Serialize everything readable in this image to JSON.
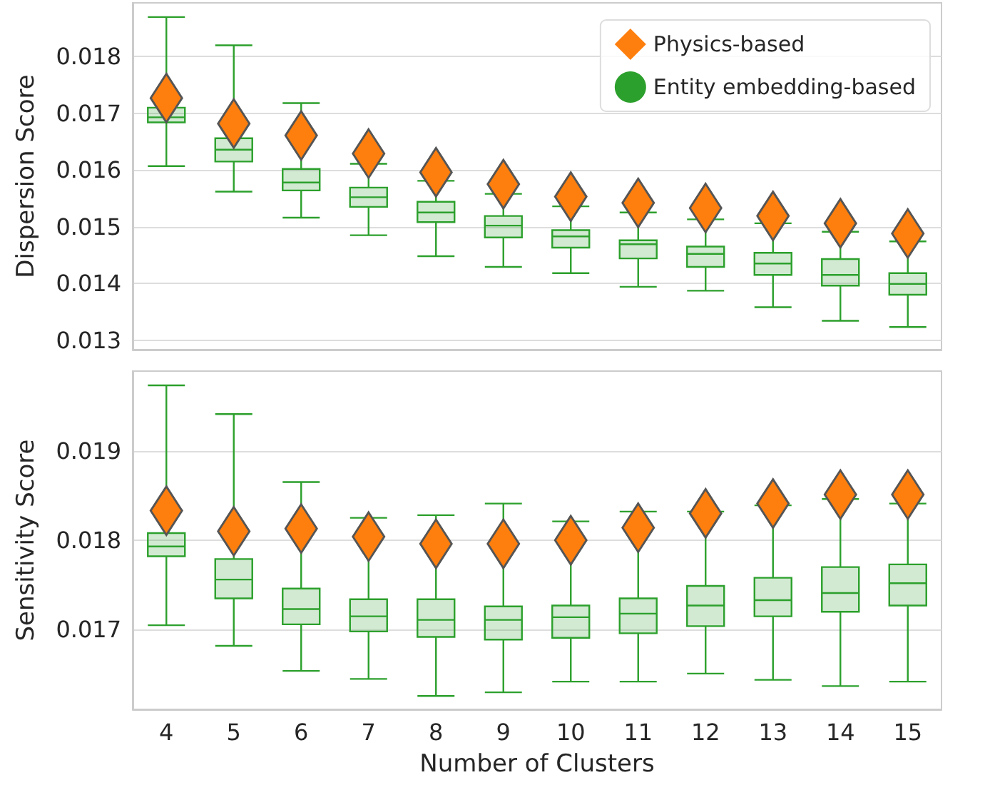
{
  "chart_data": [
    {
      "type": "box",
      "ylabel": "Dispersion Score",
      "categories": [
        "4",
        "5",
        "6",
        "7",
        "8",
        "9",
        "10",
        "11",
        "12",
        "13",
        "14",
        "15"
      ],
      "ylim": [
        0.01283,
        0.01895
      ],
      "yticks": [
        0.013,
        0.014,
        0.015,
        0.016,
        0.017,
        0.018
      ],
      "grid": "y",
      "legend": "top right",
      "tick_labels": "y",
      "series": [
        {
          "name": "Physics-based",
          "type": "scatter",
          "marker": "diamond",
          "color": "#ff7f0e",
          "x": [
            "4",
            "5",
            "6",
            "7",
            "8",
            "9",
            "10",
            "11",
            "12",
            "13",
            "14",
            "15"
          ],
          "values": [
            0.01727,
            0.01682,
            0.01661,
            0.01629,
            0.01596,
            0.01575,
            0.01553,
            0.01542,
            0.01533,
            0.01519,
            0.01506,
            0.01488
          ]
        },
        {
          "name": "Entity embedding-based",
          "type": "box",
          "marker": "circle",
          "color": "#2ca02c",
          "boxes": [
            {
              "low": 0.01607,
              "q1": 0.01684,
              "median": 0.01693,
              "q3": 0.0171,
              "high": 0.0187
            },
            {
              "low": 0.01562,
              "q1": 0.01615,
              "median": 0.01636,
              "q3": 0.01656,
              "high": 0.0182
            },
            {
              "low": 0.01516,
              "q1": 0.01564,
              "median": 0.01578,
              "q3": 0.01602,
              "high": 0.01718
            },
            {
              "low": 0.01485,
              "q1": 0.01535,
              "median": 0.01552,
              "q3": 0.01569,
              "high": 0.01611
            },
            {
              "low": 0.01448,
              "q1": 0.01508,
              "median": 0.01525,
              "q3": 0.01544,
              "high": 0.01581
            },
            {
              "low": 0.01429,
              "q1": 0.01481,
              "median": 0.01502,
              "q3": 0.01519,
              "high": 0.01558
            },
            {
              "low": 0.01418,
              "q1": 0.01463,
              "median": 0.01483,
              "q3": 0.01494,
              "high": 0.01536
            },
            {
              "low": 0.01394,
              "q1": 0.01444,
              "median": 0.01469,
              "q3": 0.01476,
              "high": 0.01525
            },
            {
              "low": 0.01387,
              "q1": 0.01429,
              "median": 0.01452,
              "q3": 0.01465,
              "high": 0.01513
            },
            {
              "low": 0.01358,
              "q1": 0.01415,
              "median": 0.01435,
              "q3": 0.01454,
              "high": 0.01506
            },
            {
              "low": 0.01334,
              "q1": 0.01396,
              "median": 0.01415,
              "q3": 0.01443,
              "high": 0.01491
            },
            {
              "low": 0.01323,
              "q1": 0.0138,
              "median": 0.01399,
              "q3": 0.01418,
              "high": 0.01474
            }
          ]
        }
      ]
    },
    {
      "type": "box",
      "xlabel": "Number of Clusters",
      "ylabel": "Sensitivity Score",
      "categories": [
        "4",
        "5",
        "6",
        "7",
        "8",
        "9",
        "10",
        "11",
        "12",
        "13",
        "14",
        "15"
      ],
      "ylim": [
        0.01611,
        0.01989
      ],
      "yticks": [
        0.017,
        0.018,
        0.019
      ],
      "grid": "y",
      "series": [
        {
          "type": "scatter",
          "marker": "diamond",
          "color": "#ff7f0e",
          "x": [
            "4",
            "5",
            "6",
            "7",
            "8",
            "9",
            "10",
            "11",
            "12",
            "13",
            "14",
            "15"
          ],
          "values": [
            0.01833,
            0.0181,
            0.01813,
            0.01804,
            0.01796,
            0.01796,
            0.018,
            0.01814,
            0.0183,
            0.01841,
            0.01851,
            0.01851
          ]
        },
        {
          "type": "box",
          "color": "#2ca02c",
          "boxes": [
            {
              "low": 0.01705,
              "q1": 0.01782,
              "median": 0.01793,
              "q3": 0.01808,
              "high": 0.01973
            },
            {
              "low": 0.01682,
              "q1": 0.01735,
              "median": 0.01756,
              "q3": 0.01779,
              "high": 0.01941
            },
            {
              "low": 0.01654,
              "q1": 0.01706,
              "median": 0.01723,
              "q3": 0.01746,
              "high": 0.01865
            },
            {
              "low": 0.01645,
              "q1": 0.01698,
              "median": 0.01715,
              "q3": 0.01734,
              "high": 0.01825
            },
            {
              "low": 0.01626,
              "q1": 0.01692,
              "median": 0.01711,
              "q3": 0.01734,
              "high": 0.01828
            },
            {
              "low": 0.0163,
              "q1": 0.01689,
              "median": 0.01711,
              "q3": 0.01726,
              "high": 0.01841
            },
            {
              "low": 0.01642,
              "q1": 0.01691,
              "median": 0.01714,
              "q3": 0.01727,
              "high": 0.01821
            },
            {
              "low": 0.01642,
              "q1": 0.01696,
              "median": 0.01718,
              "q3": 0.01735,
              "high": 0.01832
            },
            {
              "low": 0.01651,
              "q1": 0.01704,
              "median": 0.01727,
              "q3": 0.01749,
              "high": 0.01832
            },
            {
              "low": 0.01644,
              "q1": 0.01715,
              "median": 0.01733,
              "q3": 0.01758,
              "high": 0.01839
            },
            {
              "low": 0.01637,
              "q1": 0.0172,
              "median": 0.01741,
              "q3": 0.0177,
              "high": 0.01846
            },
            {
              "low": 0.01642,
              "q1": 0.01727,
              "median": 0.01752,
              "q3": 0.01773,
              "high": 0.01841
            }
          ]
        }
      ]
    }
  ]
}
